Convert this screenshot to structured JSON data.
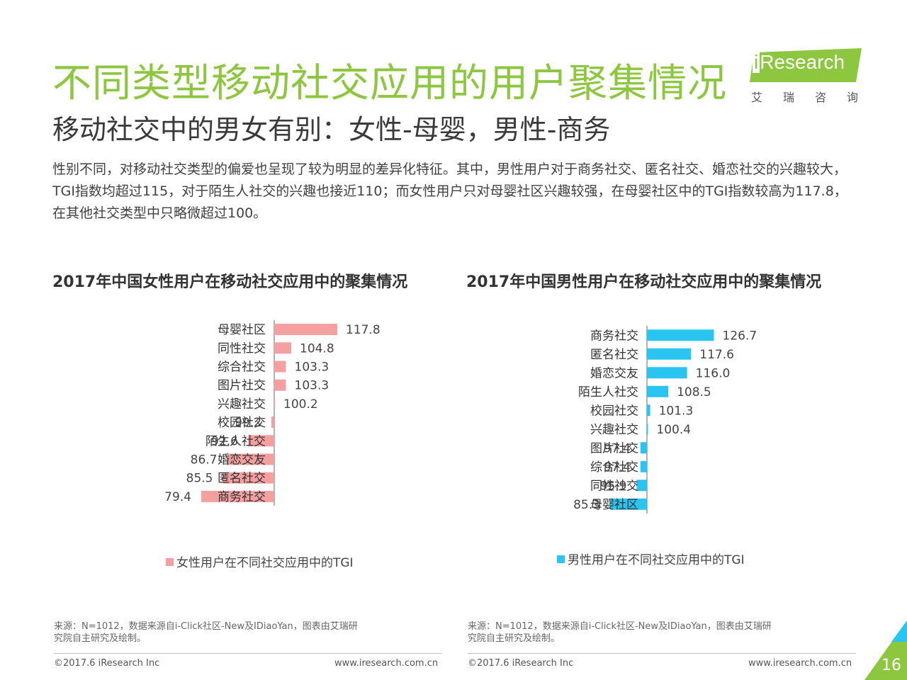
{
  "title": "不同类型移动社交应用的用户聚集情况",
  "subtitle": "移动社交中的男女有别：女性-母婴，男性-商务",
  "logo": {
    "brand": "iResearch",
    "brand_i": "i",
    "brand_rest": "Research",
    "cn": "艾瑞咨询"
  },
  "description": "性别不同，对移动社交类型的偏爱也呈现了较为明显的差异化特征。其中，男性用户对于商务社交、匿名社交、婚恋社交的兴趣较大，TGI指数均超过115，对于陌生人社交的兴趣也接近110；而女性用户只对母婴社区兴趣较强，在母婴社区中的TGI指数较高为117.8，在其他社交类型中只略微超过100。",
  "colors": {
    "accent_green": "#8dc63f",
    "female": "#f4a0a0",
    "male": "#29c5f0"
  },
  "chart_data": [
    {
      "type": "bar",
      "orientation": "horizontal",
      "title": "2017年中国女性用户在移动社交应用中的聚集情况",
      "baseline": 100,
      "categories": [
        "母婴社区",
        "同性社交",
        "综合社交",
        "图片社交",
        "兴趣社交",
        "校园社交",
        "陌生人社交",
        "婚恋交友",
        "匿名社交",
        "商务社交"
      ],
      "value_labels": [
        "117.8",
        "104.8",
        "103.3",
        "103.3",
        "100.2",
        "99.2",
        "92.6",
        "86.7",
        "85.5",
        "79.4"
      ],
      "series": [
        {
          "name": "女性用户在不同社交应用中的TGI",
          "values": [
            117.8,
            104.8,
            103.3,
            103.3,
            100.2,
            99.2,
            92.6,
            86.7,
            85.5,
            79.4
          ]
        }
      ],
      "legend": "bottom-center"
    },
    {
      "type": "bar",
      "orientation": "horizontal",
      "title": "2017年中国男性用户在移动社交应用中的聚集情况",
      "baseline": 100,
      "categories": [
        "商务社交",
        "匿名社交",
        "婚恋交友",
        "陌生人社交",
        "校园社交",
        "兴趣社交",
        "图片社交",
        "综合社交",
        "同性社交",
        "母婴社区"
      ],
      "value_labels": [
        "126.7",
        "117.6",
        "116.0",
        "108.5",
        "101.3",
        "100.4",
        "97.4",
        "97.4",
        "95.9",
        "85.3"
      ],
      "series": [
        {
          "name": "男性用户在不同社交应用中的TGI",
          "values": [
            126.7,
            117.6,
            116.0,
            108.5,
            101.3,
            100.4,
            97.4,
            97.4,
            95.9,
            85.3
          ]
        }
      ],
      "legend": "bottom-center"
    }
  ],
  "footer": {
    "source": "来源：N=1012，数据来源自i-Click社区-New及IDiaoYan，图表由艾瑞研究院自主研究及绘制。",
    "copyright": "©2017.6 iResearch Inc",
    "url": "www.iresearch.com.cn",
    "page": "16"
  }
}
